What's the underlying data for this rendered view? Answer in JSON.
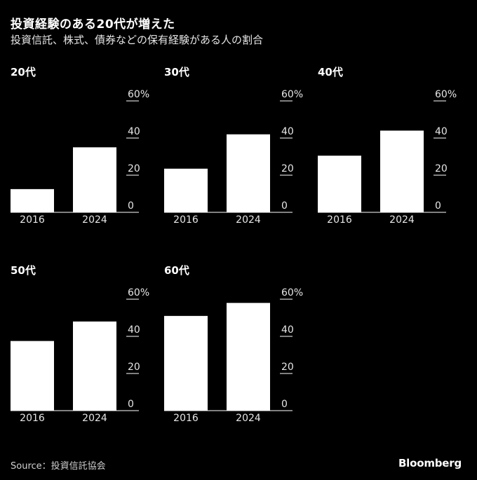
{
  "header": {
    "title": "投資経験のある20代が増えた",
    "subtitle": "投資信託、株式、債券などの保有経験がある人の割合"
  },
  "footer": {
    "source": "Source：投資信託協会",
    "brand": "Bloomberg"
  },
  "colors": {
    "background": "#000000",
    "bar": "#ffffff",
    "text": "#ffffff",
    "axis": "#ffffff"
  },
  "chart_data": [
    {
      "type": "bar",
      "title": "20代",
      "categories": [
        "2016",
        "2024"
      ],
      "values": [
        12.5,
        35
      ],
      "ylim": [
        0,
        60
      ],
      "yticks": [
        "0",
        "20",
        "40",
        "60%"
      ],
      "grid": false
    },
    {
      "type": "bar",
      "title": "30代",
      "categories": [
        "2016",
        "2024"
      ],
      "values": [
        23.5,
        42
      ],
      "ylim": [
        0,
        60
      ],
      "yticks": [
        "0",
        "20",
        "40",
        "60%"
      ],
      "grid": false
    },
    {
      "type": "bar",
      "title": "40代",
      "categories": [
        "2016",
        "2024"
      ],
      "values": [
        30.5,
        44
      ],
      "ylim": [
        0,
        60
      ],
      "yticks": [
        "0",
        "20",
        "40",
        "60%"
      ],
      "grid": false
    },
    {
      "type": "bar",
      "title": "50代",
      "categories": [
        "2016",
        "2024"
      ],
      "values": [
        37.5,
        48
      ],
      "ylim": [
        0,
        60
      ],
      "yticks": [
        "0",
        "20",
        "40",
        "60%"
      ],
      "grid": false
    },
    {
      "type": "bar",
      "title": "60代",
      "categories": [
        "2016",
        "2024"
      ],
      "values": [
        51,
        58
      ],
      "ylim": [
        0,
        60
      ],
      "yticks": [
        "0",
        "20",
        "40",
        "60%"
      ],
      "grid": false
    }
  ]
}
